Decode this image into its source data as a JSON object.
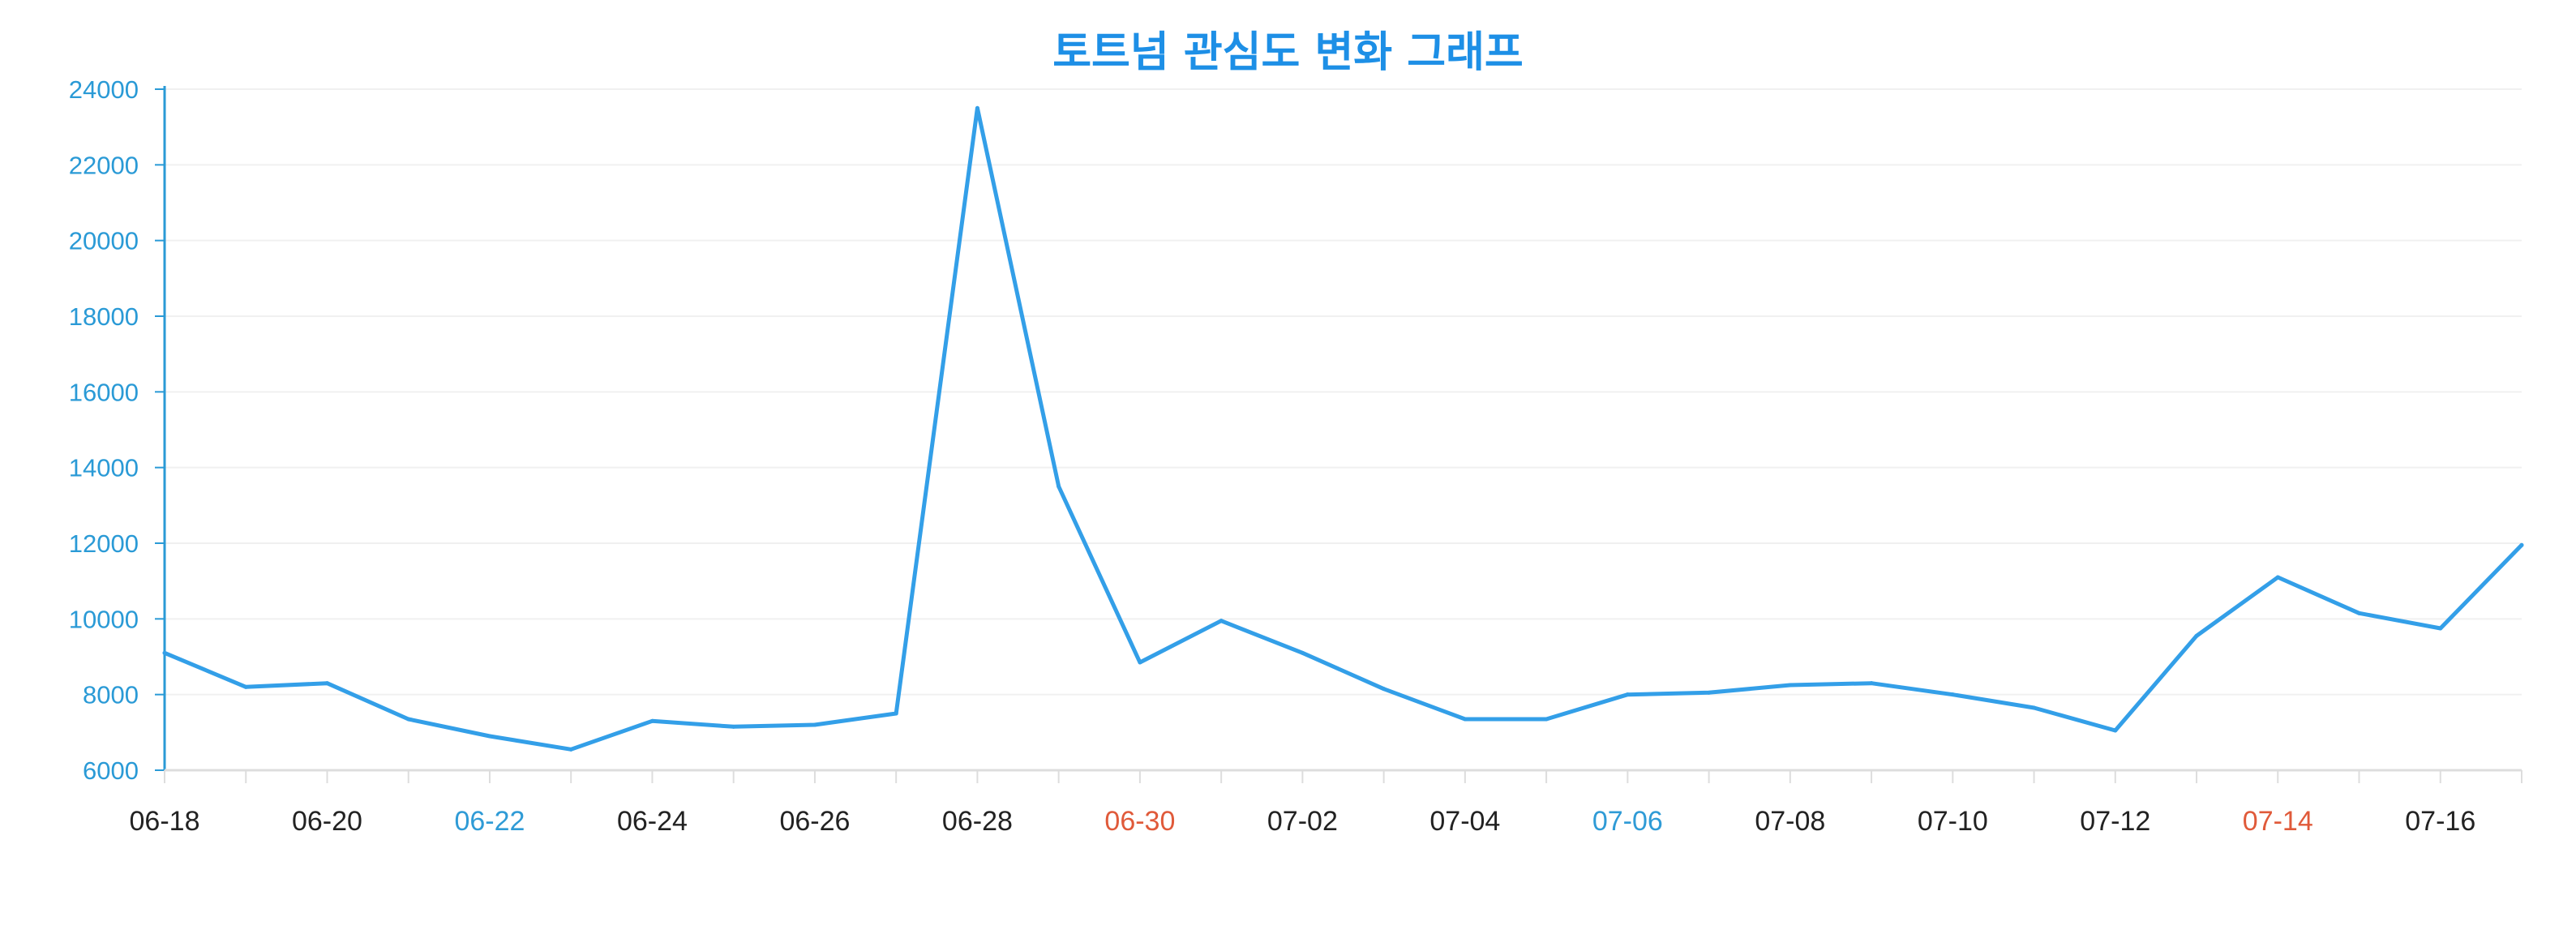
{
  "chart_data": {
    "type": "line",
    "title": "토트넘 관심도 변화 그래프",
    "xlabel": "",
    "ylabel": "",
    "x": [
      "06-18",
      "06-19",
      "06-20",
      "06-21",
      "06-22",
      "06-23",
      "06-24",
      "06-25",
      "06-26",
      "06-27",
      "06-28",
      "06-29",
      "06-30",
      "07-01",
      "07-02",
      "07-03",
      "07-04",
      "07-05",
      "07-06",
      "07-07",
      "07-08",
      "07-09",
      "07-10",
      "07-11",
      "07-12",
      "07-13",
      "07-14",
      "07-15",
      "07-16",
      "07-17"
    ],
    "x_tick_labels": [
      "06-18",
      "06-20",
      "06-22",
      "06-24",
      "06-26",
      "06-28",
      "06-30",
      "07-02",
      "07-04",
      "07-06",
      "07-08",
      "07-10",
      "07-12",
      "07-14",
      "07-16"
    ],
    "x_tick_colors": [
      "#222222",
      "#222222",
      "#2f9bd6",
      "#222222",
      "#222222",
      "#222222",
      "#e05a3a",
      "#222222",
      "#222222",
      "#2f9bd6",
      "#222222",
      "#222222",
      "#222222",
      "#e05a3a",
      "#222222"
    ],
    "series": [
      {
        "values": [
          9100,
          8200,
          8300,
          7350,
          6900,
          6550,
          7300,
          7150,
          7200,
          7500,
          23500,
          13500,
          8850,
          9950,
          9100,
          8150,
          7350,
          7350,
          8000,
          8050,
          8250,
          8300,
          8000,
          7650,
          7050,
          9550,
          11100,
          10150,
          9750,
          11950
        ]
      }
    ],
    "y_ticks": [
      6000,
      8000,
      10000,
      12000,
      14000,
      16000,
      18000,
      20000,
      22000,
      24000
    ],
    "ylim": [
      6000,
      24000
    ],
    "grid": true,
    "colors": {
      "line": "#339fe8",
      "title": "#1d8fe6",
      "y_axis": "#2a9ad6",
      "grid": "#f0f0f0",
      "x_axis": "#dddddd"
    }
  }
}
